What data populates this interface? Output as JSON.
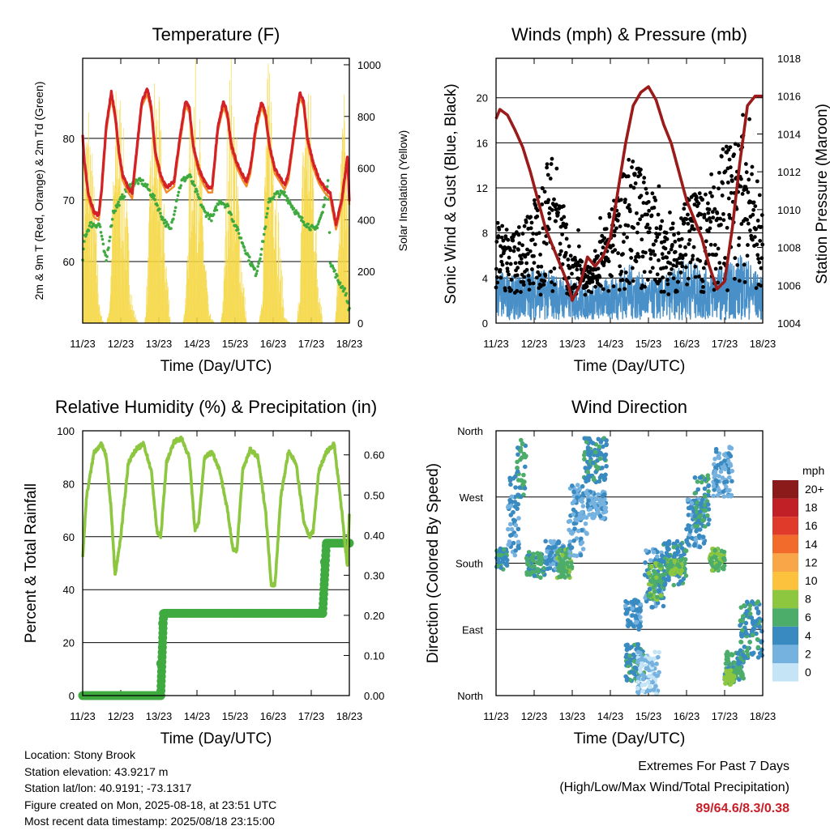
{
  "chart_data": [
    {
      "id": "temperature",
      "type": "line",
      "title": "Temperature (F)",
      "xlabel": "Time (Day/UTC)",
      "ylabel_left": "2m & 9m T (Red, Orange) & 2m Td (Green)",
      "ylabel_right": "Solar Insolation (Yellow)",
      "xticks": [
        "11/23",
        "12/23",
        "13/23",
        "14/23",
        "15/23",
        "16/23",
        "17/23",
        "18/23"
      ],
      "xlim": [
        0,
        7
      ],
      "ylim_left": [
        50,
        93
      ],
      "ylim_right": [
        0,
        1025
      ],
      "yticks_left": [
        60,
        70,
        80
      ],
      "yticks_right": [
        0,
        200,
        400,
        600,
        800,
        1000
      ],
      "colors": {
        "temp2m": "#d42027",
        "temp9m": "#f28c28",
        "dewpoint": "#3faa3f",
        "solar": "#f5d742"
      },
      "series": [
        {
          "key": "temp2m",
          "x": [
            0,
            0.05,
            0.15,
            0.3,
            0.42,
            0.5,
            0.62,
            0.75,
            0.85,
            0.95,
            1.05,
            1.2,
            1.3,
            1.4,
            1.55,
            1.7,
            1.8,
            1.9,
            2.05,
            2.2,
            2.3,
            2.4,
            2.55,
            2.7,
            2.8,
            2.9,
            3.05,
            3.2,
            3.3,
            3.4,
            3.55,
            3.7,
            3.8,
            3.9,
            4.05,
            4.2,
            4.3,
            4.4,
            4.55,
            4.7,
            4.8,
            4.9,
            5.05,
            5.2,
            5.3,
            5.4,
            5.55,
            5.7,
            5.8,
            5.9,
            6.05,
            6.2,
            6.35,
            6.5,
            6.65,
            6.8,
            6.95,
            7.0
          ],
          "values": [
            80.5,
            76,
            71,
            68,
            67.5,
            72,
            82,
            87.5,
            84,
            78,
            74,
            72,
            71,
            77,
            86,
            88,
            85,
            78,
            74,
            72,
            72.5,
            73,
            80,
            86,
            85,
            79,
            75,
            73,
            72,
            72,
            82,
            86,
            84,
            79,
            76,
            74,
            73,
            75,
            82,
            86,
            84,
            79,
            75,
            73.5,
            72.5,
            74,
            81,
            87.5,
            86,
            80,
            76,
            73.5,
            72,
            71,
            66,
            70,
            77,
            70
          ]
        },
        {
          "key": "dewpoint",
          "x": [
            0,
            0.05,
            0.2,
            0.45,
            0.55,
            0.62,
            0.8,
            1.0,
            1.2,
            1.4,
            1.55,
            1.7,
            1.9,
            2.1,
            2.3,
            2.5,
            2.6,
            2.8,
            3.0,
            3.2,
            3.4,
            3.6,
            3.8,
            4.0,
            4.2,
            4.4,
            4.55,
            4.7,
            4.9,
            5.1,
            5.3,
            5.5,
            5.7,
            5.9,
            6.1,
            6.3,
            6.45,
            6.5,
            6.7,
            6.9,
            7.0
          ],
          "values": [
            60,
            64,
            66,
            66,
            62,
            60,
            68,
            70,
            72,
            73,
            73,
            72,
            70,
            67,
            65,
            71,
            73,
            74,
            71,
            68,
            67,
            70,
            69,
            66,
            63,
            60,
            58,
            62,
            70,
            71,
            71,
            69,
            67,
            66,
            65,
            68,
            73,
            60,
            57,
            55,
            52
          ]
        },
        {
          "key": "solar",
          "x": [
            0,
            0.15,
            0.3,
            0.45,
            0.55,
            0.62,
            0.7,
            0.8,
            0.9,
            1.05,
            1.15,
            1.3,
            1.45,
            1.55,
            1.62,
            1.7,
            1.8,
            1.9,
            2.05,
            2.15,
            2.3,
            2.45,
            2.55,
            2.62,
            2.7,
            2.8,
            2.9,
            3.05,
            3.15,
            3.3,
            3.45,
            3.55,
            3.62,
            3.7,
            3.8,
            3.9,
            4.05,
            4.15,
            4.3,
            4.45,
            4.55,
            4.62,
            4.7,
            4.8,
            4.9,
            5.05,
            5.15,
            5.3,
            5.45,
            5.55,
            5.62,
            5.7,
            5.8,
            5.9,
            6.05,
            6.15,
            6.3,
            6.45,
            6.55,
            6.62,
            6.7,
            6.8,
            6.9,
            7.0
          ],
          "values": [
            540,
            760,
            420,
            40,
            0,
            0,
            80,
            520,
            880,
            620,
            380,
            60,
            0,
            0,
            0,
            200,
            700,
            850,
            620,
            300,
            0,
            0,
            0,
            0,
            90,
            650,
            920,
            700,
            380,
            40,
            0,
            0,
            0,
            150,
            760,
            860,
            560,
            250,
            0,
            0,
            0,
            0,
            120,
            700,
            910,
            640,
            300,
            20,
            0,
            0,
            0,
            180,
            780,
            880,
            600,
            220,
            0,
            0,
            0,
            0,
            250,
            780,
            660,
            300
          ]
        }
      ]
    },
    {
      "id": "winds",
      "type": "scatter",
      "title": "Winds (mph) & Pressure (mb)",
      "xlabel": "Time (Day/UTC)",
      "ylabel_left": "Sonic Wind & Gust (Blue, Black)",
      "ylabel_right": "Station Pressure (Maroon)",
      "xticks": [
        "11/23",
        "12/23",
        "13/23",
        "14/23",
        "15/23",
        "16/23",
        "17/23",
        "18/23"
      ],
      "xlim": [
        0,
        7
      ],
      "ylim_left": [
        0,
        23.5
      ],
      "ylim_right": [
        1004,
        1018
      ],
      "yticks_left": [
        0,
        4,
        8,
        12,
        16,
        20
      ],
      "yticks_right": [
        1004,
        1006,
        1008,
        1010,
        1012,
        1014,
        1016,
        1018
      ],
      "colors": {
        "wind": "#4a90c8",
        "gust": "#000000",
        "pressure": "#9b1b1b"
      },
      "wind_envelope": {
        "x": [
          0,
          0.5,
          1.0,
          1.5,
          2.0,
          2.5,
          3.0,
          3.5,
          4.0,
          4.5,
          5.0,
          5.5,
          6.0,
          6.5,
          7.0
        ],
        "values": [
          4.5,
          3.8,
          4.8,
          4.2,
          3.5,
          3.0,
          3.8,
          5.0,
          3.5,
          4.0,
          5.5,
          4.5,
          4.8,
          6.0,
          3.5
        ]
      },
      "gust_envelope": {
        "x": [
          0,
          0.5,
          1.0,
          1.5,
          2.0,
          2.5,
          3.0,
          3.5,
          4.0,
          4.5,
          5.0,
          5.5,
          6.0,
          6.5,
          7.0
        ],
        "values": [
          9,
          8,
          11,
          16,
          6,
          5,
          10,
          15,
          13,
          8,
          11,
          12,
          16,
          17,
          11
        ]
      },
      "pressure": {
        "x": [
          0,
          0.1,
          0.3,
          0.5,
          0.7,
          0.9,
          1.1,
          1.3,
          1.5,
          1.7,
          1.9,
          2.0,
          2.2,
          2.4,
          2.6,
          2.8,
          3.0,
          3.2,
          3.4,
          3.6,
          3.8,
          4.0,
          4.2,
          4.4,
          4.6,
          4.8,
          5.0,
          5.2,
          5.4,
          5.6,
          5.8,
          6.0,
          6.2,
          6.4,
          6.6,
          6.8,
          7.0
        ],
        "values": [
          1014.8,
          1015.3,
          1015.0,
          1014.2,
          1013.3,
          1012.0,
          1010.5,
          1009.0,
          1008.0,
          1007.0,
          1006.0,
          1005.2,
          1006.0,
          1007.5,
          1007.0,
          1007.5,
          1008.5,
          1011.0,
          1013.5,
          1015.5,
          1016.2,
          1016.5,
          1015.8,
          1014.5,
          1013.5,
          1012.0,
          1010.5,
          1009.5,
          1008.5,
          1007.0,
          1005.8,
          1006.2,
          1009.0,
          1012.5,
          1015.5,
          1016.0,
          1016.0
        ]
      }
    },
    {
      "id": "humidity",
      "type": "line",
      "title": "Relative Humidity (%) & Precipitation (in)",
      "xlabel": "Time (Day/UTC)",
      "ylabel_left": "Percent & Total Rainfall",
      "xticks": [
        "11/23",
        "12/23",
        "13/23",
        "14/23",
        "15/23",
        "16/23",
        "17/23",
        "18/23"
      ],
      "xlim": [
        0,
        7
      ],
      "ylim_left": [
        0,
        100
      ],
      "ylim_right": [
        0,
        0.66
      ],
      "yticks_left": [
        0,
        20,
        40,
        60,
        80,
        100
      ],
      "yticks_right": [
        0.0,
        0.1,
        0.2,
        0.3,
        0.4,
        0.5,
        0.6
      ],
      "colors": {
        "rh": "#8dc63f",
        "precip": "#3faa3f"
      },
      "series": [
        {
          "key": "rh",
          "x": [
            0,
            0.1,
            0.3,
            0.5,
            0.62,
            0.75,
            0.85,
            1.0,
            1.2,
            1.4,
            1.6,
            1.8,
            1.95,
            2.05,
            2.2,
            2.4,
            2.6,
            2.8,
            2.95,
            3.05,
            3.2,
            3.4,
            3.6,
            3.8,
            3.95,
            4.05,
            4.2,
            4.4,
            4.6,
            4.8,
            4.95,
            5.05,
            5.2,
            5.4,
            5.6,
            5.8,
            5.95,
            6.05,
            6.2,
            6.4,
            6.6,
            6.8,
            6.95,
            7.0
          ],
          "values": [
            52,
            75,
            92,
            95,
            90,
            70,
            45,
            60,
            88,
            93,
            95,
            85,
            62,
            60,
            88,
            96,
            97,
            90,
            62,
            66,
            90,
            92,
            85,
            70,
            55,
            55,
            85,
            93,
            90,
            70,
            42,
            42,
            75,
            92,
            88,
            66,
            60,
            62,
            85,
            92,
            95,
            70,
            48,
            68
          ]
        },
        {
          "key": "precip",
          "x": [
            0,
            1.0,
            2.0,
            2.05,
            2.1,
            2.15,
            3.0,
            4.0,
            5.0,
            6.0,
            6.3,
            6.33,
            6.36,
            6.4,
            6.6,
            7.0
          ],
          "values": [
            0.0,
            0.0,
            0.0,
            0.08,
            0.18,
            0.205,
            0.205,
            0.205,
            0.205,
            0.205,
            0.205,
            0.28,
            0.36,
            0.38,
            0.38,
            0.38
          ]
        }
      ]
    },
    {
      "id": "wind_direction",
      "type": "scatter",
      "title": "Wind Direction",
      "xlabel": "Time (Day/UTC)",
      "ylabel_left": "Direction (Colored By Speed)",
      "xticks": [
        "11/23",
        "12/23",
        "13/23",
        "14/23",
        "15/23",
        "16/23",
        "17/23",
        "18/23"
      ],
      "xlim": [
        0,
        7
      ],
      "ylim_left": [
        0,
        360
      ],
      "yticks_labels": [
        "North",
        "East",
        "South",
        "West",
        "North"
      ],
      "yticks_values": [
        0,
        90,
        180,
        270,
        360
      ],
      "clusters": [
        {
          "x": [
            0.0,
            0.3
          ],
          "dir": [
            170,
            200
          ],
          "speed": 4
        },
        {
          "x": [
            0.3,
            0.6
          ],
          "dir": [
            190,
            300
          ],
          "speed": 3
        },
        {
          "x": [
            0.55,
            0.8
          ],
          "dir": [
            270,
            350
          ],
          "speed": 5
        },
        {
          "x": [
            0.8,
            1.3
          ],
          "dir": [
            160,
            195
          ],
          "speed": 5
        },
        {
          "x": [
            1.3,
            1.8
          ],
          "dir": [
            170,
            210
          ],
          "speed": 3
        },
        {
          "x": [
            1.6,
            2.0
          ],
          "dir": [
            160,
            200
          ],
          "speed": 6
        },
        {
          "x": [
            1.9,
            2.4
          ],
          "dir": [
            190,
            290
          ],
          "speed": 2
        },
        {
          "x": [
            2.3,
            2.9
          ],
          "dir": [
            290,
            350
          ],
          "speed": 4
        },
        {
          "x": [
            2.4,
            2.9
          ],
          "dir": [
            240,
            280
          ],
          "speed": 2
        },
        {
          "x": [
            3.4,
            3.9
          ],
          "dir": [
            20,
            70
          ],
          "speed": 4
        },
        {
          "x": [
            3.4,
            3.8
          ],
          "dir": [
            90,
            130
          ],
          "speed": 3
        },
        {
          "x": [
            3.9,
            4.4
          ],
          "dir": [
            120,
            200
          ],
          "speed": 3
        },
        {
          "x": [
            4.0,
            4.4
          ],
          "dir": [
            130,
            180
          ],
          "speed": 6
        },
        {
          "x": [
            3.7,
            4.3
          ],
          "dir": [
            0,
            60
          ],
          "speed": 1
        },
        {
          "x": [
            4.4,
            5.0
          ],
          "dir": [
            150,
            210
          ],
          "speed": 4
        },
        {
          "x": [
            4.5,
            4.9
          ],
          "dir": [
            165,
            185
          ],
          "speed": 7
        },
        {
          "x": [
            5.0,
            5.5
          ],
          "dir": [
            200,
            270
          ],
          "speed": 3
        },
        {
          "x": [
            5.2,
            5.6
          ],
          "dir": [
            230,
            300
          ],
          "speed": 4
        },
        {
          "x": [
            5.6,
            6.0
          ],
          "dir": [
            170,
            200
          ],
          "speed": 6
        },
        {
          "x": [
            5.7,
            6.2
          ],
          "dir": [
            270,
            340
          ],
          "speed": 2
        },
        {
          "x": [
            6.0,
            6.5
          ],
          "dir": [
            20,
            60
          ],
          "speed": 5
        },
        {
          "x": [
            6.0,
            6.3
          ],
          "dir": [
            15,
            35
          ],
          "speed": 7
        },
        {
          "x": [
            6.4,
            7.0
          ],
          "dir": [
            50,
            130
          ],
          "speed": 4
        }
      ],
      "colorbar": {
        "title": "mph",
        "labels": [
          "20+",
          "18",
          "16",
          "14",
          "12",
          "10",
          "8",
          "6",
          "4",
          "2",
          "0"
        ],
        "colors": [
          "#8b1a1a",
          "#c02026",
          "#e03a2a",
          "#f26b2a",
          "#f9a648",
          "#fcc23d",
          "#8dc63f",
          "#4cad6b",
          "#3a8ac2",
          "#76b2e0",
          "#c5e5f7"
        ]
      }
    }
  ],
  "info": {
    "location": "Location: Stony Brook",
    "elevation": "Station elevation: 43.9217 m",
    "latlon": "Station lat/lon: 40.9191; -73.1317",
    "created": "Figure created on Mon, 2025-08-18, at 23:51 UTC",
    "recent": "Most recent data timestamp: 2025/08/18 23:15:00"
  },
  "extremes": {
    "line1": "Extremes For Past 7 Days",
    "line2": "(High/Low/Max Wind/Total Precipitation)",
    "value": "89/64.6/8.3/0.38"
  }
}
